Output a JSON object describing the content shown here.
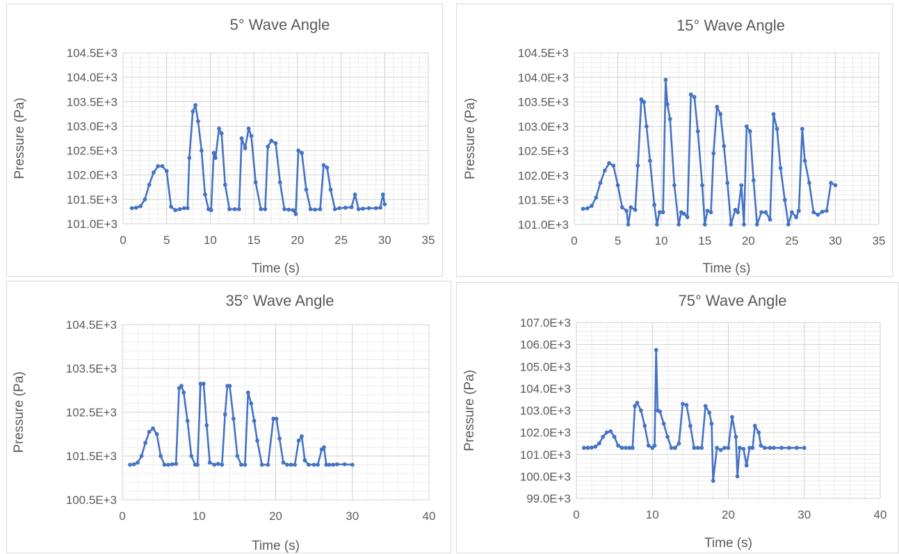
{
  "chart_data": [
    {
      "type": "line",
      "title": "5° Wave Angle",
      "xlabel": "Time (s)",
      "ylabel": "Pressure (Pa)",
      "xlim": [
        0,
        35
      ],
      "xticks": [
        0,
        5,
        10,
        15,
        20,
        25,
        30,
        35
      ],
      "ylim": [
        101000,
        104500
      ],
      "yticks": [
        101000,
        101500,
        102000,
        102500,
        103000,
        103500,
        104000,
        104500
      ],
      "ytick_labels": [
        "101.0E+3",
        "101.5E+3",
        "102.0E+3",
        "102.5E+3",
        "103.0E+3",
        "103.5E+3",
        "104.0E+3",
        "104.5E+3"
      ],
      "grid": true,
      "color": "#4472c4",
      "series": [
        {
          "x": [
            1.0,
            1.5,
            2.0,
            2.5,
            3.0,
            3.5,
            4.0,
            4.5,
            5.0,
            5.5,
            6.0,
            6.5,
            7.0,
            7.4,
            7.6,
            8.0,
            8.3,
            8.6,
            9.0,
            9.4,
            9.8,
            10.1,
            10.4,
            10.6,
            11.0,
            11.3,
            11.7,
            12.2,
            12.8,
            13.3,
            13.6,
            14.0,
            14.4,
            14.7,
            15.2,
            15.8,
            16.3,
            16.6,
            17.0,
            17.5,
            18.0,
            18.5,
            19.0,
            19.5,
            19.8,
            20.1,
            20.5,
            21.0,
            21.5,
            22.0,
            22.6,
            23.0,
            23.4,
            23.8,
            24.3,
            24.8,
            25.5,
            26.2,
            26.6,
            27.0,
            27.5,
            28.2,
            29.0,
            29.5,
            29.8,
            30.0
          ],
          "y": [
            101320,
            101330,
            101360,
            101500,
            101800,
            102050,
            102180,
            102180,
            102080,
            101350,
            101280,
            101300,
            101320,
            101320,
            102350,
            103300,
            103430,
            103100,
            102500,
            101600,
            101300,
            101280,
            102450,
            102350,
            102950,
            102850,
            101800,
            101300,
            101300,
            101300,
            102750,
            102550,
            102950,
            102800,
            101850,
            101300,
            101300,
            102580,
            102700,
            102650,
            101850,
            101300,
            101290,
            101280,
            101200,
            102500,
            102450,
            101700,
            101300,
            101290,
            101300,
            102200,
            102150,
            101700,
            101300,
            101320,
            101330,
            101340,
            101600,
            101300,
            101310,
            101320,
            101320,
            101330,
            101600,
            101400
          ]
        }
      ]
    },
    {
      "type": "line",
      "title": "15° Wave Angle",
      "xlabel": "Time (s)",
      "ylabel": "Pressure (Pa)",
      "xlim": [
        0,
        35
      ],
      "xticks": [
        0,
        5,
        10,
        15,
        20,
        25,
        30,
        35
      ],
      "ylim": [
        101000,
        104500
      ],
      "yticks": [
        101000,
        101500,
        102000,
        102500,
        103000,
        103500,
        104000,
        104500
      ],
      "ytick_labels": [
        "101.0E+3",
        "101.5E+3",
        "102.0E+3",
        "102.5E+3",
        "103.0E+3",
        "103.5E+3",
        "104.0E+3",
        "104.5E+3"
      ],
      "grid": true,
      "color": "#4472c4",
      "series": [
        {
          "x": [
            1.0,
            1.5,
            2.0,
            2.5,
            3.0,
            3.5,
            4.0,
            4.5,
            5.0,
            5.5,
            6.0,
            6.2,
            6.5,
            7.0,
            7.3,
            7.7,
            8.0,
            8.3,
            8.7,
            9.2,
            9.5,
            9.8,
            10.2,
            10.5,
            10.7,
            11.0,
            11.5,
            12.0,
            12.3,
            12.6,
            13.0,
            13.4,
            13.8,
            14.2,
            14.7,
            15.0,
            15.3,
            15.7,
            16.0,
            16.4,
            16.8,
            17.2,
            17.6,
            18.0,
            18.5,
            18.8,
            19.2,
            19.5,
            19.8,
            20.2,
            20.6,
            21.0,
            21.5,
            22.0,
            22.5,
            22.9,
            23.3,
            23.7,
            24.2,
            24.6,
            25.0,
            25.5,
            25.8,
            26.2,
            26.5,
            27.0,
            27.5,
            28.0,
            28.5,
            29.0,
            29.5,
            30.0
          ],
          "y": [
            101320,
            101330,
            101380,
            101550,
            101850,
            102100,
            102250,
            102200,
            101800,
            101350,
            101280,
            100980,
            101350,
            101300,
            102200,
            103550,
            103500,
            103000,
            102300,
            101400,
            100980,
            101250,
            101250,
            103950,
            103450,
            103150,
            101800,
            100980,
            101250,
            101220,
            101150,
            103650,
            103600,
            102900,
            101800,
            100980,
            101280,
            101250,
            102450,
            103400,
            103250,
            102600,
            101850,
            100980,
            101300,
            101250,
            101800,
            101000,
            103000,
            102900,
            101900,
            101000,
            101250,
            101250,
            101100,
            103250,
            102950,
            102150,
            101500,
            101000,
            101250,
            101150,
            101280,
            102950,
            102300,
            101850,
            101250,
            101200,
            101260,
            101280,
            101850,
            101800
          ]
        }
      ]
    },
    {
      "type": "line",
      "title": "35° Wave Angle",
      "xlabel": "Time (s)",
      "ylabel": "Pressure (Pa)",
      "xlim": [
        0,
        40
      ],
      "xticks": [
        0,
        10,
        20,
        30,
        40
      ],
      "ylim": [
        100500,
        104500
      ],
      "yticks": [
        100500,
        101500,
        102500,
        103500,
        104500
      ],
      "ytick_labels": [
        "100.5E+3",
        "101.5E+3",
        "102.5E+3",
        "103.5E+3",
        "104.5E+3"
      ],
      "grid": true,
      "color": "#4472c4",
      "series": [
        {
          "x": [
            1.0,
            1.5,
            2.0,
            2.5,
            3.0,
            3.5,
            4.0,
            4.5,
            5.0,
            5.5,
            6.0,
            6.5,
            7.0,
            7.4,
            7.7,
            8.0,
            8.5,
            9.0,
            9.5,
            9.8,
            10.2,
            10.6,
            11.0,
            11.4,
            12.0,
            12.5,
            13.0,
            13.4,
            13.7,
            14.0,
            14.5,
            15.0,
            15.5,
            16.0,
            16.4,
            16.8,
            17.2,
            17.6,
            18.2,
            19.0,
            19.7,
            20.1,
            20.5,
            21.0,
            21.5,
            22.0,
            22.5,
            23.0,
            23.4,
            23.8,
            24.3,
            25.0,
            25.5,
            26.0,
            26.3,
            26.6,
            27.0,
            27.5,
            28.0,
            29.0,
            30.0
          ],
          "y": [
            101300,
            101310,
            101350,
            101500,
            101800,
            102050,
            102130,
            102000,
            101500,
            101300,
            101300,
            101310,
            101320,
            103050,
            103100,
            102950,
            102300,
            101500,
            101300,
            101300,
            103150,
            103150,
            102200,
            101350,
            101300,
            101320,
            101300,
            102450,
            103100,
            103100,
            102350,
            101500,
            101300,
            101300,
            102950,
            102700,
            102300,
            101850,
            101300,
            101300,
            102350,
            102350,
            101900,
            101350,
            101300,
            101300,
            101300,
            101850,
            101950,
            101400,
            101300,
            101300,
            101300,
            101650,
            101700,
            101300,
            101300,
            101300,
            101310,
            101310,
            101300
          ]
        }
      ]
    },
    {
      "type": "line",
      "title": "75° Wave Angle",
      "xlabel": "Time (s)",
      "ylabel": "Pressure (Pa)",
      "xlim": [
        0,
        40
      ],
      "xticks": [
        0,
        10,
        20,
        30,
        40
      ],
      "ylim": [
        99000,
        107000
      ],
      "yticks": [
        99000,
        100000,
        101000,
        102000,
        103000,
        104000,
        105000,
        106000,
        107000
      ],
      "ytick_labels": [
        "99.0E+3",
        "100.0E+3",
        "101.0E+3",
        "102.0E+3",
        "103.0E+3",
        "104.0E+3",
        "105.0E+3",
        "106.0E+3",
        "107.0E+3"
      ],
      "grid": true,
      "color": "#4472c4",
      "series": [
        {
          "x": [
            1.0,
            1.5,
            2.0,
            2.5,
            3.0,
            3.5,
            4.0,
            4.5,
            5.0,
            5.5,
            6.0,
            6.5,
            7.0,
            7.4,
            7.7,
            8.0,
            8.5,
            9.0,
            9.5,
            10.0,
            10.3,
            10.5,
            10.7,
            11.0,
            11.5,
            12.0,
            12.5,
            13.0,
            13.5,
            14.0,
            14.5,
            15.0,
            15.5,
            16.0,
            16.5,
            17.0,
            17.5,
            17.8,
            18.0,
            18.5,
            19.0,
            19.5,
            20.0,
            20.5,
            21.0,
            21.2,
            21.5,
            22.0,
            22.4,
            22.8,
            23.2,
            23.5,
            24.0,
            24.3,
            24.8,
            25.5,
            26.0,
            27.0,
            28.0,
            29.0,
            30.0
          ],
          "y": [
            101300,
            101300,
            101310,
            101350,
            101500,
            101800,
            102000,
            102050,
            101800,
            101400,
            101300,
            101300,
            101300,
            101300,
            103200,
            103350,
            103000,
            102300,
            101400,
            101300,
            101400,
            105750,
            103000,
            102950,
            102400,
            101800,
            101300,
            101300,
            101500,
            103300,
            103250,
            102300,
            101300,
            101300,
            101300,
            103200,
            102900,
            102400,
            99800,
            101300,
            101200,
            101300,
            101300,
            102700,
            101800,
            100000,
            101300,
            101250,
            100500,
            101300,
            101300,
            102300,
            102000,
            101400,
            101300,
            101300,
            101300,
            101300,
            101300,
            101300,
            101300
          ]
        }
      ]
    }
  ]
}
